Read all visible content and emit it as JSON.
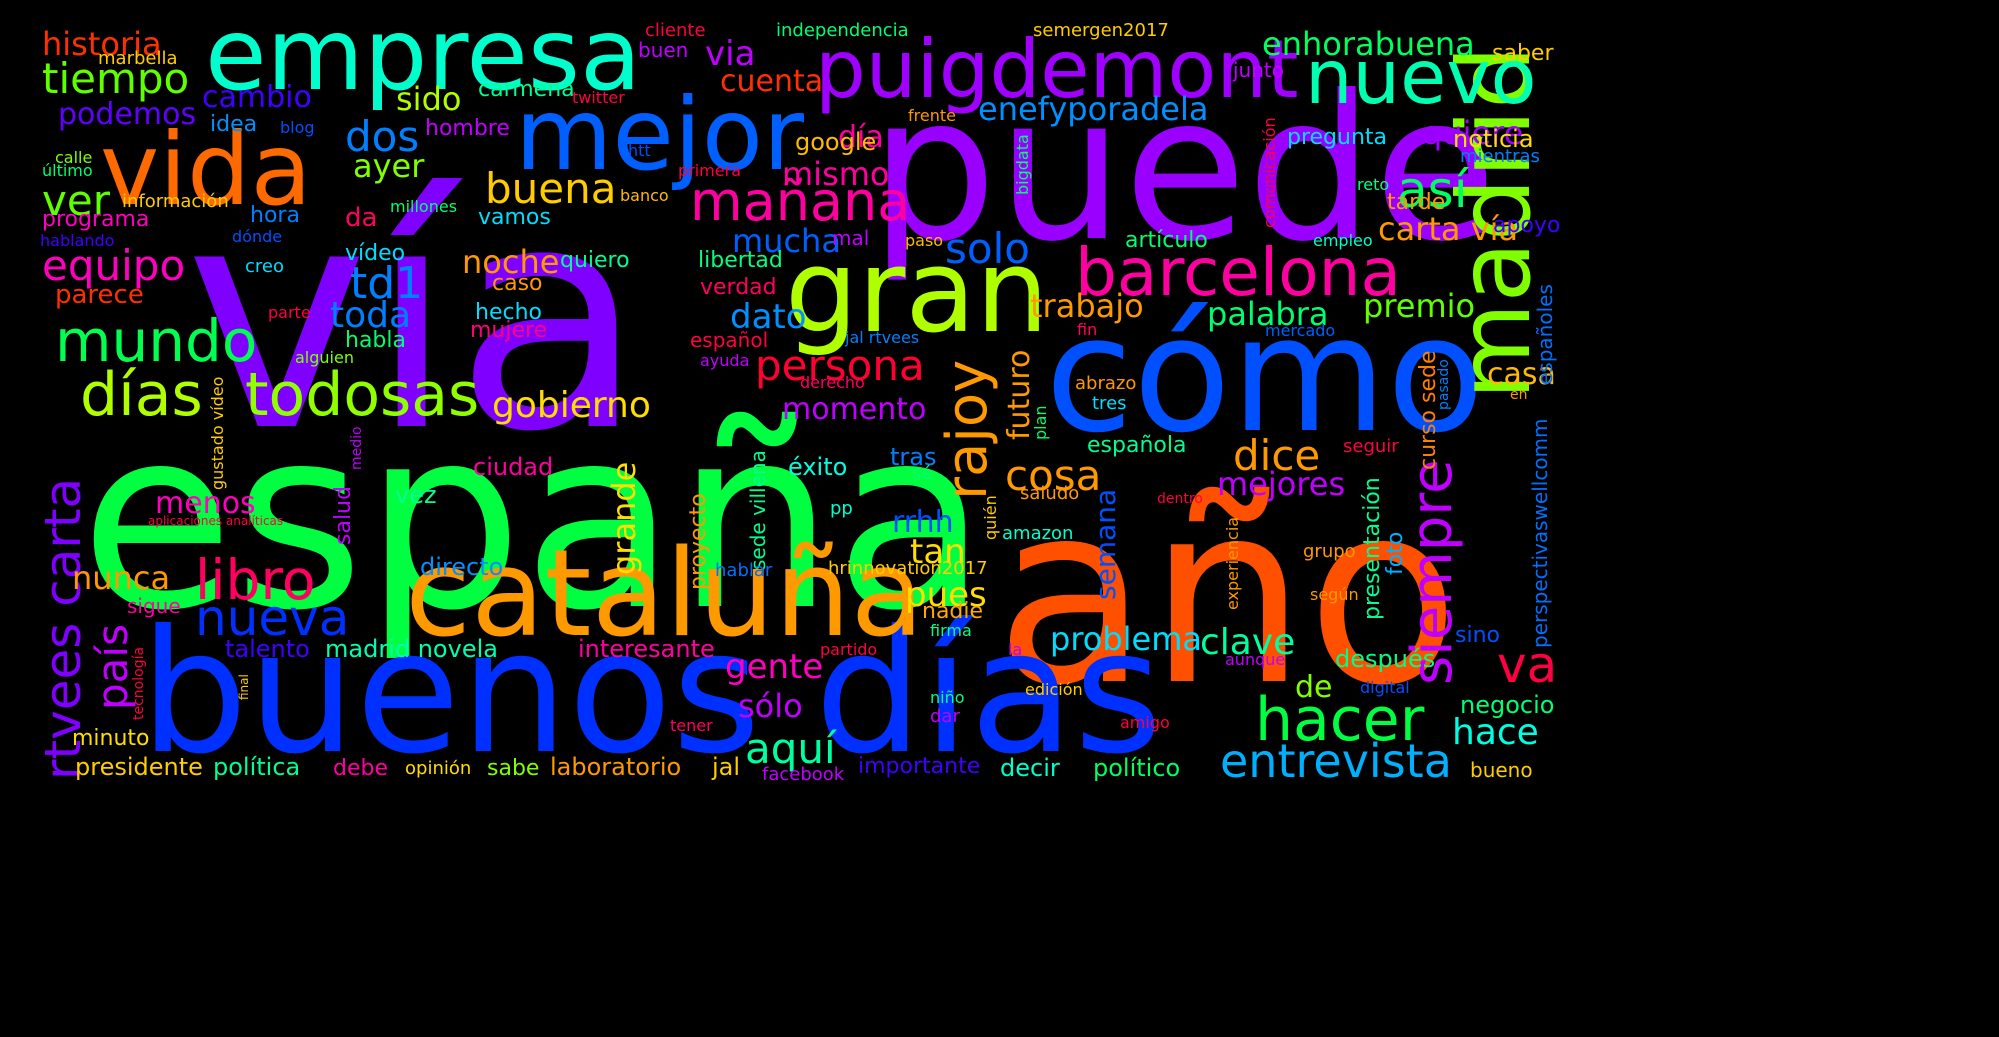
{
  "words": [
    {
      "text": "vía",
      "color": "#8000ff"
    },
    {
      "text": "españa",
      "color": "#00ff40"
    },
    {
      "text": "año",
      "color": "#ff5000"
    },
    {
      "text": "puede",
      "color": "#9900ff"
    },
    {
      "text": "buenos días",
      "color": "#0030ff"
    },
    {
      "text": "cómo",
      "color": "#0050ff"
    },
    {
      "text": "cataluña",
      "color": "#ff9900"
    },
    {
      "text": "gran",
      "color": "#b0ff00"
    },
    {
      "text": "empresa",
      "color": "#00ffcc"
    },
    {
      "text": "mejor",
      "color": "#0060ff"
    },
    {
      "text": "vida",
      "color": "#ff6a00"
    },
    {
      "text": "madrid",
      "color": "#80ff00"
    },
    {
      "text": "puigdemont",
      "color": "#a000ff"
    },
    {
      "text": "nuevo",
      "color": "#00ffb0"
    },
    {
      "text": "barcelona",
      "color": "#ff00a0"
    },
    {
      "text": "hacer",
      "color": "#00ff40"
    },
    {
      "text": "días",
      "color": "#b0ff00"
    },
    {
      "text": "todosas",
      "color": "#90ff00"
    },
    {
      "text": "siempre",
      "color": "#c000ff"
    },
    {
      "text": "rajoy",
      "color": "#ff9900"
    },
    {
      "text": "libro",
      "color": "#ff0060"
    },
    {
      "text": "mundo",
      "color": "#00ff50"
    },
    {
      "text": "rtvees carta",
      "color": "#8000ff"
    },
    {
      "text": "mañana",
      "color": "#ff00a0"
    },
    {
      "text": "nueva",
      "color": "#0030ff"
    },
    {
      "text": "entrevista",
      "color": "#00b0ff"
    },
    {
      "text": "así",
      "color": "#00ff60"
    },
    {
      "text": "va",
      "color": "#ff0040"
    },
    {
      "text": "ver",
      "color": "#60ff00"
    },
    {
      "text": "tiempo",
      "color": "#60ff00"
    },
    {
      "text": "equipo",
      "color": "#ff00c0"
    },
    {
      "text": "país",
      "color": "#c000ff"
    },
    {
      "text": "persona",
      "color": "#ff0030"
    },
    {
      "text": "buena",
      "color": "#ffcc00"
    },
    {
      "text": "solo",
      "color": "#0060ff"
    },
    {
      "text": "td1",
      "color": "#0080ff"
    },
    {
      "text": "dos",
      "color": "#0080ff"
    },
    {
      "text": "aquí",
      "color": "#00ffa0"
    },
    {
      "text": "cosa",
      "color": "#ff9900"
    },
    {
      "text": "dice",
      "color": "#ff9900"
    },
    {
      "text": "via",
      "color": "#c000ff"
    },
    {
      "text": "enhorabuena",
      "color": "#00ff60"
    },
    {
      "text": "historia",
      "color": "#ff3000"
    },
    {
      "text": "gobierno",
      "color": "#ffdd00"
    },
    {
      "text": "enefyporadela",
      "color": "#0090ff"
    },
    {
      "text": "carta vía",
      "color": "#ff9900"
    },
    {
      "text": "toda",
      "color": "#0080ff"
    },
    {
      "text": "trabajo",
      "color": "#ff9900"
    },
    {
      "text": "palabra",
      "color": "#00ff70"
    },
    {
      "text": "premio",
      "color": "#60ff00"
    },
    {
      "text": "noche",
      "color": "#ff9900"
    },
    {
      "text": "mucha",
      "color": "#0060ff"
    },
    {
      "text": "dato",
      "color": "#0090ff"
    },
    {
      "text": "futuro",
      "color": "#ff9900"
    },
    {
      "text": "momento",
      "color": "#c000ff"
    },
    {
      "text": "problema",
      "color": "#00ddff"
    },
    {
      "text": "clave",
      "color": "#00ffa0"
    },
    {
      "text": "gente",
      "color": "#ff00c0"
    },
    {
      "text": "nunca",
      "color": "#ff9900"
    },
    {
      "text": "mejores",
      "color": "#c000ff"
    },
    {
      "text": "hace",
      "color": "#00ffe0"
    },
    {
      "text": "grande",
      "color": "#ffdd00"
    },
    {
      "text": "pues",
      "color": "#ffdd00"
    },
    {
      "text": "tan",
      "color": "#ffdd00"
    },
    {
      "text": "rrhh",
      "color": "#0050ff"
    },
    {
      "text": "menos",
      "color": "#ff00c0"
    },
    {
      "text": "sólo",
      "color": "#c000ff"
    },
    {
      "text": "podemos",
      "color": "#6000ff"
    },
    {
      "text": "cambio",
      "color": "#4000ff"
    },
    {
      "text": "sido",
      "color": "#b0ff00"
    },
    {
      "text": "ayer",
      "color": "#80ff00"
    },
    {
      "text": "día",
      "color": "#ff00a0"
    },
    {
      "text": "mismo",
      "color": "#ff00a0"
    },
    {
      "text": "cuenta",
      "color": "#ff3000"
    },
    {
      "text": "quiere",
      "color": "#a000ff"
    },
    {
      "text": "semana",
      "color": "#0050ff"
    },
    {
      "text": "casa",
      "color": "#ffbb00"
    },
    {
      "text": "de",
      "color": "#80ff00"
    },
    {
      "text": "presidente",
      "color": "#ffcc00"
    },
    {
      "text": "política",
      "color": "#00ff90"
    },
    {
      "text": "debe",
      "color": "#ff00a0"
    },
    {
      "text": "opinión",
      "color": "#ffdd00"
    },
    {
      "text": "sabe",
      "color": "#80ff00"
    },
    {
      "text": "laboratorio",
      "color": "#ff9900"
    },
    {
      "text": "jal",
      "color": "#ffcc00"
    },
    {
      "text": "facebook",
      "color": "#c000ff"
    },
    {
      "text": "importante",
      "color": "#4000ff"
    },
    {
      "text": "decir",
      "color": "#00ffcc"
    },
    {
      "text": "político",
      "color": "#00ff60"
    },
    {
      "text": "bueno",
      "color": "#ffcc00"
    },
    {
      "text": "minuto",
      "color": "#ffdd00"
    },
    {
      "text": "talento",
      "color": "#4000ff"
    },
    {
      "text": "madrid novela",
      "color": "#00ffb0"
    },
    {
      "text": "interesante",
      "color": "#ff00a0"
    },
    {
      "text": "directo",
      "color": "#0090ff"
    },
    {
      "text": "sigue",
      "color": "#ff00a0"
    },
    {
      "text": "nadie",
      "color": "#ffaa00"
    },
    {
      "text": "ciudad",
      "color": "#ff00a0"
    },
    {
      "text": "vez",
      "color": "#00ff90"
    },
    {
      "text": "proyecto",
      "color": "#ff9900"
    },
    {
      "text": "sede villena",
      "color": "#00ff90"
    },
    {
      "text": "éxito",
      "color": "#00ffe0"
    },
    {
      "text": "salud",
      "color": "#c000ff"
    },
    {
      "text": "española",
      "color": "#00ff90"
    },
    {
      "text": "tras",
      "color": "#0080ff"
    },
    {
      "text": "curso sede",
      "color": "#ff8000"
    },
    {
      "text": "presentación",
      "color": "#00ff90"
    },
    {
      "text": "foto",
      "color": "#00b0ff"
    },
    {
      "text": "perspectivaswellcomm",
      "color": "#0070ff"
    },
    {
      "text": "españoles",
      "color": "#0070ff"
    },
    {
      "text": "después",
      "color": "#00ff80"
    },
    {
      "text": "negocio",
      "color": "#00ff70"
    },
    {
      "text": "sino",
      "color": "#0050ff"
    },
    {
      "text": "vamos",
      "color": "#00ddff"
    },
    {
      "text": "hora",
      "color": "#0080ff"
    },
    {
      "text": "da",
      "color": "#ff0060"
    },
    {
      "text": "vídeo",
      "color": "#00ddff"
    },
    {
      "text": "quiero",
      "color": "#00ff90"
    },
    {
      "text": "libertad",
      "color": "#00ff80"
    },
    {
      "text": "verdad",
      "color": "#ff0060"
    },
    {
      "text": "caso",
      "color": "#ff9900"
    },
    {
      "text": "hecho",
      "color": "#00ddff"
    },
    {
      "text": "mujere",
      "color": "#ff0080"
    },
    {
      "text": "habla",
      "color": "#00ff70"
    },
    {
      "text": "parece",
      "color": "#ff3000"
    },
    {
      "text": "programa",
      "color": "#ff00c0"
    },
    {
      "text": "artículo",
      "color": "#00ff70"
    },
    {
      "text": "pregunta",
      "color": "#00ddff"
    },
    {
      "text": "noticia",
      "color": "#ffdd00"
    },
    {
      "text": "tarde",
      "color": "#ff9900"
    },
    {
      "text": "apoyo",
      "color": "#4000ff"
    },
    {
      "text": "saber",
      "color": "#ffcc00"
    },
    {
      "text": "junto",
      "color": "#c000ff"
    },
    {
      "text": "google",
      "color": "#ffbb00"
    },
    {
      "text": "carmena",
      "color": "#00ff90"
    },
    {
      "text": "hombre",
      "color": "#c000ff"
    },
    {
      "text": "idea",
      "color": "#0090ff"
    },
    {
      "text": "buen",
      "color": "#c000ff"
    },
    {
      "text": "cliente",
      "color": "#ff0040"
    },
    {
      "text": "independencia",
      "color": "#00ff70"
    },
    {
      "text": "semergen2017",
      "color": "#ffcc00"
    },
    {
      "text": "marbella",
      "color": "#ffcc00"
    },
    {
      "text": "último",
      "color": "#00ff70"
    },
    {
      "text": "calle",
      "color": "#80ff00"
    },
    {
      "text": "información",
      "color": "#ffcc00"
    },
    {
      "text": "hablando",
      "color": "#4000ff"
    },
    {
      "text": "dónde",
      "color": "#0050ff"
    },
    {
      "text": "creo",
      "color": "#00ddff"
    },
    {
      "text": "millones",
      "color": "#00ff70"
    },
    {
      "text": "banco",
      "color": "#ffbb00"
    },
    {
      "text": "twitter",
      "color": "#ff0040"
    },
    {
      "text": "blog",
      "color": "#0050ff"
    },
    {
      "text": "htt",
      "color": "#0050ff"
    },
    {
      "text": "primera",
      "color": "#ff0040"
    },
    {
      "text": "frente",
      "color": "#ff9900"
    },
    {
      "text": "comunicación",
      "color": "#ff0040"
    },
    {
      "text": "bigdata",
      "color": "#00ff70"
    },
    {
      "text": "mientras",
      "color": "#0080ff"
    },
    {
      "text": "reto",
      "color": "#00ff90"
    },
    {
      "text": "empleo",
      "color": "#00ffcc"
    },
    {
      "text": "mal",
      "color": "#c000ff"
    },
    {
      "text": "paso",
      "color": "#ffbb00"
    },
    {
      "text": "parte",
      "color": "#ff0040"
    },
    {
      "text": "alguien",
      "color": "#80ff00"
    },
    {
      "text": "español",
      "color": "#ff0040"
    },
    {
      "text": "ayuda",
      "color": "#c000ff"
    },
    {
      "text": "jal rtvees",
      "color": "#0080ff"
    },
    {
      "text": "mercado",
      "color": "#0060ff"
    },
    {
      "text": "fin",
      "color": "#ff0060"
    },
    {
      "text": "derecho",
      "color": "#ff0060"
    },
    {
      "text": "abrazo",
      "color": "#ff9900"
    },
    {
      "text": "tres",
      "color": "#00ddff"
    },
    {
      "text": "pasado",
      "color": "#0080ff"
    },
    {
      "text": "en",
      "color": "#ff9900"
    },
    {
      "text": "plan",
      "color": "#00ff70"
    },
    {
      "text": "seguir",
      "color": "#ff0040"
    },
    {
      "text": "sé",
      "color": "#00ff70"
    },
    {
      "text": "pp",
      "color": "#00ffcc"
    },
    {
      "text": "saludo",
      "color": "#ff9900"
    },
    {
      "text": "dentro",
      "color": "#ff0040"
    },
    {
      "text": "quién",
      "color": "#ffcc00"
    },
    {
      "text": "amazon",
      "color": "#00ffcc"
    },
    {
      "text": "experiencia",
      "color": "#ff9900"
    },
    {
      "text": "grupo",
      "color": "#ff9900"
    },
    {
      "text": "según",
      "color": "#ff9900"
    },
    {
      "text": "hrinnovation2017",
      "color": "#ffcc00"
    },
    {
      "text": "hablar",
      "color": "#0070ff"
    },
    {
      "text": "firma",
      "color": "#00ff90"
    },
    {
      "text": "la",
      "color": "#c000ff"
    },
    {
      "text": "aunque",
      "color": "#c000ff"
    },
    {
      "text": "digital",
      "color": "#0050ff"
    },
    {
      "text": "partido",
      "color": "#ff0040"
    },
    {
      "text": "edición",
      "color": "#ffcc00"
    },
    {
      "text": "niño",
      "color": "#00ff80"
    },
    {
      "text": "dar",
      "color": "#c000ff"
    },
    {
      "text": "amigo",
      "color": "#ff0040"
    },
    {
      "text": "tener",
      "color": "#ff0060"
    },
    {
      "text": "final",
      "color": "#ffcc00"
    },
    {
      "text": "tecnología",
      "color": "#ff0040"
    },
    {
      "text": "gustado vídeo",
      "color": "#ffcc00"
    },
    {
      "text": "medio",
      "color": "#c000ff"
    },
    {
      "text": "aplicaciones analíticas",
      "color": "#ff0040"
    }
  ]
}
